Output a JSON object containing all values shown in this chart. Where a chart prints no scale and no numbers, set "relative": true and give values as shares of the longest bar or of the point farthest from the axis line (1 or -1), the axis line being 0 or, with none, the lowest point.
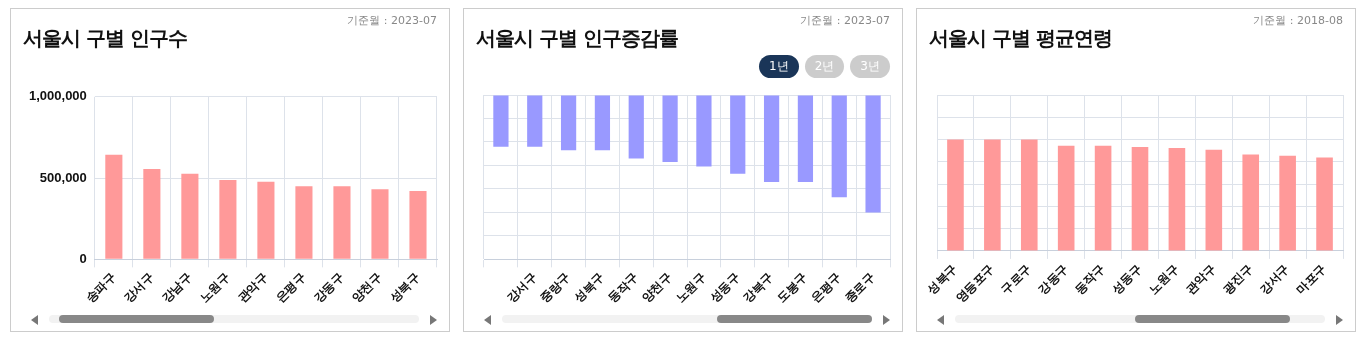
{
  "chart_data": [
    {
      "type": "bar",
      "title": "서울시 구별 인구수",
      "subtitle": "기준월 : 2023-07",
      "categories": [
        "송파구",
        "강서구",
        "강남구",
        "노원구",
        "관악구",
        "은평구",
        "강동구",
        "양천구",
        "성북구"
      ],
      "values": [
        643000,
        556000,
        527000,
        488000,
        478000,
        450000,
        450000,
        432000,
        421000
      ],
      "color": "#ff9999",
      "ylim": [
        0,
        1000000
      ],
      "yticks": [
        {
          "value": 0,
          "label": "0"
        },
        {
          "value": 500000,
          "label": "500,000"
        },
        {
          "value": 1000000,
          "label": "1,000,000"
        }
      ],
      "grid": true
    },
    {
      "type": "bar",
      "title": "서울시 구별 인구증감률",
      "subtitle": "기준월 : 2023-07",
      "annotations": [
        "1년",
        "2년",
        "3년"
      ],
      "categories": [
        null,
        "강서구",
        "중랑구",
        "성북구",
        "동작구",
        "양천구",
        "노원구",
        "성동구",
        "강북구",
        "도봉구",
        "은평구",
        "종로구"
      ],
      "values": [
        -0.44,
        -0.44,
        -0.47,
        -0.47,
        -0.54,
        -0.57,
        -0.61,
        -0.67,
        -0.74,
        -0.74,
        -0.87,
        -1
      ],
      "color": "#9999ff",
      "relative": true,
      "grid": true
    },
    {
      "type": "bar",
      "title": "서울시 구별 평균연령",
      "subtitle": "기준월 : 2018-08",
      "categories": [
        "성북구",
        "영등포구",
        "구로구",
        "강동구",
        "동작구",
        "성동구",
        "노원구",
        "관악구",
        "광진구",
        "강서구",
        "마포구"
      ],
      "values": [
        1,
        1,
        1,
        0.945,
        0.945,
        0.934,
        0.923,
        0.909,
        0.865,
        0.854,
        0.839
      ],
      "color": "#ff9999",
      "relative": true,
      "grid": true
    }
  ]
}
